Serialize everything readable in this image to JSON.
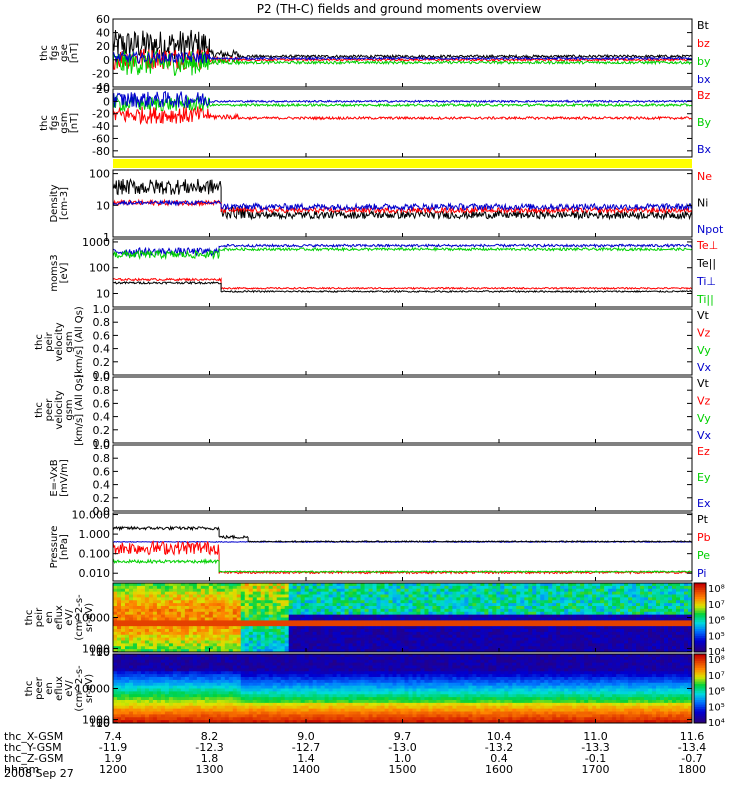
{
  "title": "P2 (TH-C) fields and ground moments overview",
  "date_label": "2008 Sep 27",
  "colors": {
    "black": "#000000",
    "red": "#ff0000",
    "green": "#00d000",
    "blue": "#0000cc",
    "yellow": "#ffff00"
  },
  "chart_data": [
    {
      "id": "fgs_gse",
      "type": "line",
      "ylabel": [
        "thc",
        "fgs",
        "gse",
        "[nT]"
      ],
      "ylim": [
        -40,
        60
      ],
      "yticks": [
        "60",
        "40",
        "20",
        "0",
        "-20",
        "-40"
      ],
      "ytick_values": [
        60,
        40,
        20,
        0,
        -20,
        -40
      ],
      "legend": [
        {
          "label": "Bt",
          "color": "#000000"
        },
        {
          "label": "bz",
          "color": "#ff0000"
        },
        {
          "label": "by",
          "color": "#00d000"
        },
        {
          "label": "bx",
          "color": "#0000cc"
        }
      ],
      "series": [
        {
          "name": "Bt",
          "color": "#000000",
          "segments": [
            {
              "x0": 1200,
              "x1": 1300,
              "base": 22,
              "noise": 22
            },
            {
              "x0": 1300,
              "x1": 1330,
              "base": 8,
              "noise": 6
            },
            {
              "x0": 1330,
              "x1": 1800,
              "base": 5,
              "noise": 2
            }
          ]
        },
        {
          "name": "bz",
          "color": "#ff0000",
          "segments": [
            {
              "x0": 1200,
              "x1": 1300,
              "base": 2,
              "noise": 16
            },
            {
              "x0": 1300,
              "x1": 1330,
              "base": 0,
              "noise": 4
            },
            {
              "x0": 1330,
              "x1": 1800,
              "base": 0,
              "noise": 1.5
            }
          ]
        },
        {
          "name": "by",
          "color": "#00d000",
          "segments": [
            {
              "x0": 1200,
              "x1": 1300,
              "base": -5,
              "noise": 18
            },
            {
              "x0": 1300,
              "x1": 1330,
              "base": -3,
              "noise": 4
            },
            {
              "x0": 1330,
              "x1": 1800,
              "base": -4,
              "noise": 2
            }
          ]
        },
        {
          "name": "bx",
          "color": "#0000cc",
          "segments": [
            {
              "x0": 1200,
              "x1": 1300,
              "base": 3,
              "noise": 8
            },
            {
              "x0": 1300,
              "x1": 1800,
              "base": 2,
              "noise": 1.5
            }
          ]
        }
      ]
    },
    {
      "id": "fgs_gsm",
      "type": "line",
      "ylabel": [
        "thc",
        "fgs",
        "gsm",
        "[nT]"
      ],
      "ylim": [
        -90,
        20
      ],
      "yticks": [
        "20",
        "0",
        "-20",
        "-40",
        "-60",
        "-80"
      ],
      "ytick_values": [
        20,
        0,
        -20,
        -40,
        -60,
        -80
      ],
      "legend": [
        {
          "label": "Bz",
          "color": "#ff0000"
        },
        {
          "label": "By",
          "color": "#00d000"
        },
        {
          "label": "Bx",
          "color": "#0000cc"
        }
      ],
      "series": [
        {
          "name": "Bz",
          "color": "#ff0000",
          "segments": [
            {
              "x0": 1200,
              "x1": 1300,
              "base": -22,
              "noise": 14
            },
            {
              "x0": 1300,
              "x1": 1330,
              "base": -25,
              "noise": 4
            },
            {
              "x0": 1330,
              "x1": 1800,
              "base": -27,
              "noise": 2
            }
          ]
        },
        {
          "name": "By",
          "color": "#00d000",
          "segments": [
            {
              "x0": 1200,
              "x1": 1300,
              "base": -4,
              "noise": 12
            },
            {
              "x0": 1300,
              "x1": 1800,
              "base": -6,
              "noise": 2
            }
          ]
        },
        {
          "name": "Bx",
          "color": "#0000cc",
          "segments": [
            {
              "x0": 1200,
              "x1": 1300,
              "base": 3,
              "noise": 13
            },
            {
              "x0": 1300,
              "x1": 1800,
              "base": 0,
              "noise": 1.5
            }
          ]
        }
      ]
    },
    {
      "id": "mode_bar",
      "type": "bar",
      "color": "#ffff00"
    },
    {
      "id": "density",
      "type": "line",
      "log": true,
      "ylabel": [
        "Density",
        "[cm-3]"
      ],
      "ylim": [
        1,
        130
      ],
      "yticks": [
        "100",
        "10",
        "1"
      ],
      "ytick_values": [
        100,
        10,
        1
      ],
      "legend": [
        {
          "label": "Ne",
          "color": "#ff0000"
        },
        {
          "label": "Ni",
          "color": "#000000"
        },
        {
          "label": "Npot",
          "color": "#0000cc"
        }
      ],
      "series": [
        {
          "name": "Ni",
          "color": "#000000",
          "segments": [
            {
              "x0": 1200,
              "x1": 1312,
              "base": 38,
              "noise": 0.25
            },
            {
              "x0": 1312,
              "x1": 1340,
              "base": 6,
              "noise": 0.2
            },
            {
              "x0": 1340,
              "x1": 1800,
              "base": 5,
              "noise": 0.12
            }
          ]
        },
        {
          "name": "Ne",
          "color": "#ff0000",
          "segments": [
            {
              "x0": 1200,
              "x1": 1312,
              "base": 12,
              "noise": 0.08
            },
            {
              "x0": 1312,
              "x1": 1800,
              "base": 7,
              "noise": 0.08
            }
          ]
        },
        {
          "name": "Npot",
          "color": "#0000cc",
          "segments": [
            {
              "x0": 1200,
              "x1": 1312,
              "base": 12,
              "noise": 0.06
            },
            {
              "x0": 1312,
              "x1": 1800,
              "base": 9,
              "noise": 0.1
            }
          ]
        }
      ]
    },
    {
      "id": "temperature",
      "type": "line",
      "log": true,
      "ylabel": [
        "moms3",
        "[eV]"
      ],
      "ylim": [
        3,
        1300
      ],
      "yticks": [
        "1000",
        "100",
        "10"
      ],
      "ytick_values": [
        1000,
        100,
        10
      ],
      "legend": [
        {
          "label": "Te⊥",
          "color": "#ff0000"
        },
        {
          "label": "Te||",
          "color": "#000000"
        },
        {
          "label": "Ti⊥",
          "color": "#0000cc"
        },
        {
          "label": "Ti||",
          "color": "#00d000"
        }
      ],
      "series": [
        {
          "name": "Ti⊥",
          "color": "#0000cc",
          "segments": [
            {
              "x0": 1200,
              "x1": 1310,
              "base": 420,
              "noise": 0.15
            },
            {
              "x0": 1310,
              "x1": 1800,
              "base": 720,
              "noise": 0.05
            }
          ]
        },
        {
          "name": "Ti||",
          "color": "#00d000",
          "segments": [
            {
              "x0": 1200,
              "x1": 1310,
              "base": 320,
              "noise": 0.15
            },
            {
              "x0": 1310,
              "x1": 1800,
              "base": 520,
              "noise": 0.05
            }
          ]
        },
        {
          "name": "Te⊥",
          "color": "#ff0000",
          "segments": [
            {
              "x0": 1200,
              "x1": 1312,
              "base": 35,
              "noise": 0.04
            },
            {
              "x0": 1312,
              "x1": 1800,
              "base": 16,
              "noise": 0.03
            }
          ]
        },
        {
          "name": "Te||",
          "color": "#000000",
          "segments": [
            {
              "x0": 1200,
              "x1": 1312,
              "base": 26,
              "noise": 0.04
            },
            {
              "x0": 1312,
              "x1": 1800,
              "base": 12,
              "noise": 0.03
            }
          ]
        }
      ]
    },
    {
      "id": "peir_velocity",
      "type": "line",
      "ylabel": [
        "thc",
        "peir",
        "velocity",
        "gsm",
        "[km/s] (All Qs)"
      ],
      "ylim": [
        0,
        1
      ],
      "yticks": [
        "1.0",
        "0.8",
        "0.6",
        "0.4",
        "0.2",
        "0.0"
      ],
      "ytick_values": [
        1,
        0.8,
        0.6,
        0.4,
        0.2,
        0
      ],
      "legend": [
        {
          "label": "Vt",
          "color": "#000000"
        },
        {
          "label": "Vz",
          "color": "#ff0000"
        },
        {
          "label": "Vy",
          "color": "#00d000"
        },
        {
          "label": "Vx",
          "color": "#0000cc"
        }
      ],
      "series": []
    },
    {
      "id": "peer_velocity",
      "type": "line",
      "ylabel": [
        "thc",
        "peer",
        "velocity",
        "gsm",
        "[km/s] (All Qs)"
      ],
      "ylim": [
        0,
        1
      ],
      "yticks": [
        "1.0",
        "0.8",
        "0.6",
        "0.4",
        "0.2",
        "0.0"
      ],
      "ytick_values": [
        1,
        0.8,
        0.6,
        0.4,
        0.2,
        0
      ],
      "legend": [
        {
          "label": "Vt",
          "color": "#000000"
        },
        {
          "label": "Vz",
          "color": "#ff0000"
        },
        {
          "label": "Vy",
          "color": "#00d000"
        },
        {
          "label": "Vx",
          "color": "#0000cc"
        }
      ],
      "series": []
    },
    {
      "id": "efield",
      "type": "line",
      "ylabel": [
        "E=-VxB",
        "[mV/m]"
      ],
      "ylim": [
        0,
        1
      ],
      "yticks": [
        "1.0",
        "0.8",
        "0.6",
        "0.4",
        "0.2",
        "0.0"
      ],
      "ytick_values": [
        1,
        0.8,
        0.6,
        0.4,
        0.2,
        0
      ],
      "legend": [
        {
          "label": "Ez",
          "color": "#ff0000"
        },
        {
          "label": "Ey",
          "color": "#00d000"
        },
        {
          "label": "Ex",
          "color": "#0000cc"
        }
      ],
      "series": []
    },
    {
      "id": "pressure",
      "type": "line",
      "log": true,
      "ylabel": [
        "Pressure",
        "[nPa]"
      ],
      "ylim": [
        0.004,
        12
      ],
      "yticks": [
        "10.000",
        "1.000",
        "0.100",
        "0.010"
      ],
      "ytick_values": [
        10,
        1,
        0.1,
        0.01
      ],
      "legend": [
        {
          "label": "Pt",
          "color": "#000000"
        },
        {
          "label": "Pb",
          "color": "#ff0000"
        },
        {
          "label": "Pe",
          "color": "#00d000"
        },
        {
          "label": "Pi",
          "color": "#0000cc"
        }
      ],
      "series": [
        {
          "name": "Pi",
          "color": "#0000cc",
          "segments": [
            {
              "x0": 1200,
              "x1": 1800,
              "base": 0.4,
              "noise": 0.02
            }
          ]
        },
        {
          "name": "Pt",
          "color": "#000000",
          "segments": [
            {
              "x0": 1200,
              "x1": 1310,
              "base": 2.0,
              "noise": 0.08
            },
            {
              "x0": 1310,
              "x1": 1340,
              "base": 0.7,
              "noise": 0.08
            },
            {
              "x0": 1340,
              "x1": 1800,
              "base": 0.42,
              "noise": 0.03
            }
          ]
        },
        {
          "name": "Pb",
          "color": "#ff0000",
          "segments": [
            {
              "x0": 1200,
              "x1": 1310,
              "base": 0.2,
              "noise": 0.35
            },
            {
              "x0": 1310,
              "x1": 1800,
              "base": 0.011,
              "noise": 0.06
            }
          ]
        },
        {
          "name": "Pe",
          "color": "#00d000",
          "segments": [
            {
              "x0": 1200,
              "x1": 1310,
              "base": 0.04,
              "noise": 0.08
            },
            {
              "x0": 1310,
              "x1": 1800,
              "base": 0.012,
              "noise": 0.03
            }
          ]
        }
      ]
    },
    {
      "id": "peir_eflux",
      "type": "heatmap",
      "ylabel": [
        "thc",
        "peir",
        "en",
        "eflux",
        "eV/",
        "(cm^2-s-",
        "sr-eV)"
      ],
      "ylim": [
        7,
        20000
      ],
      "yticks": [
        "10000",
        "1000",
        "100",
        "10"
      ],
      "ytick_values": [
        10000,
        1000,
        100,
        10
      ],
      "colorbar": {
        "labels": [
          "10⁸",
          "10⁷",
          "10⁶",
          "10⁵",
          "10⁴"
        ],
        "min_exp": 3.6,
        "max_exp": 8.2
      }
    },
    {
      "id": "peer_eflux",
      "type": "heatmap",
      "ylabel": [
        "thc",
        "peer",
        "en",
        "eflux",
        "eV/",
        "(cm^2-s-",
        "sr-eV)"
      ],
      "ylim": [
        7,
        20000
      ],
      "yticks": [
        "10000",
        "1000",
        "100",
        "10"
      ],
      "ytick_values": [
        10000,
        1000,
        100,
        10
      ],
      "colorbar": {
        "labels": [
          "10⁸",
          "10⁷",
          "10⁶",
          "10⁵",
          "10⁴"
        ],
        "min_exp": 3.6,
        "max_exp": 8.2
      }
    }
  ],
  "xaxis": {
    "range": [
      1200,
      1800
    ],
    "ticks": [
      1200,
      1300,
      1400,
      1500,
      1600,
      1700,
      1800
    ],
    "rows": [
      {
        "label": "thc_X-GSM",
        "values": [
          "7.4",
          "8.2",
          "9.0",
          "9.7",
          "10.4",
          "11.0",
          "11.6"
        ]
      },
      {
        "label": "thc_Y-GSM",
        "values": [
          "-11.9",
          "-12.3",
          "-12.7",
          "-13.0",
          "-13.2",
          "-13.3",
          "-13.4"
        ]
      },
      {
        "label": "thc_Z-GSM",
        "values": [
          "1.9",
          "1.8",
          "1.4",
          "1.0",
          "0.4",
          "-0.1",
          "-0.7"
        ]
      },
      {
        "label": "hhmm",
        "values": [
          "1200",
          "1300",
          "1400",
          "1500",
          "1600",
          "1700",
          "1800"
        ]
      }
    ]
  }
}
